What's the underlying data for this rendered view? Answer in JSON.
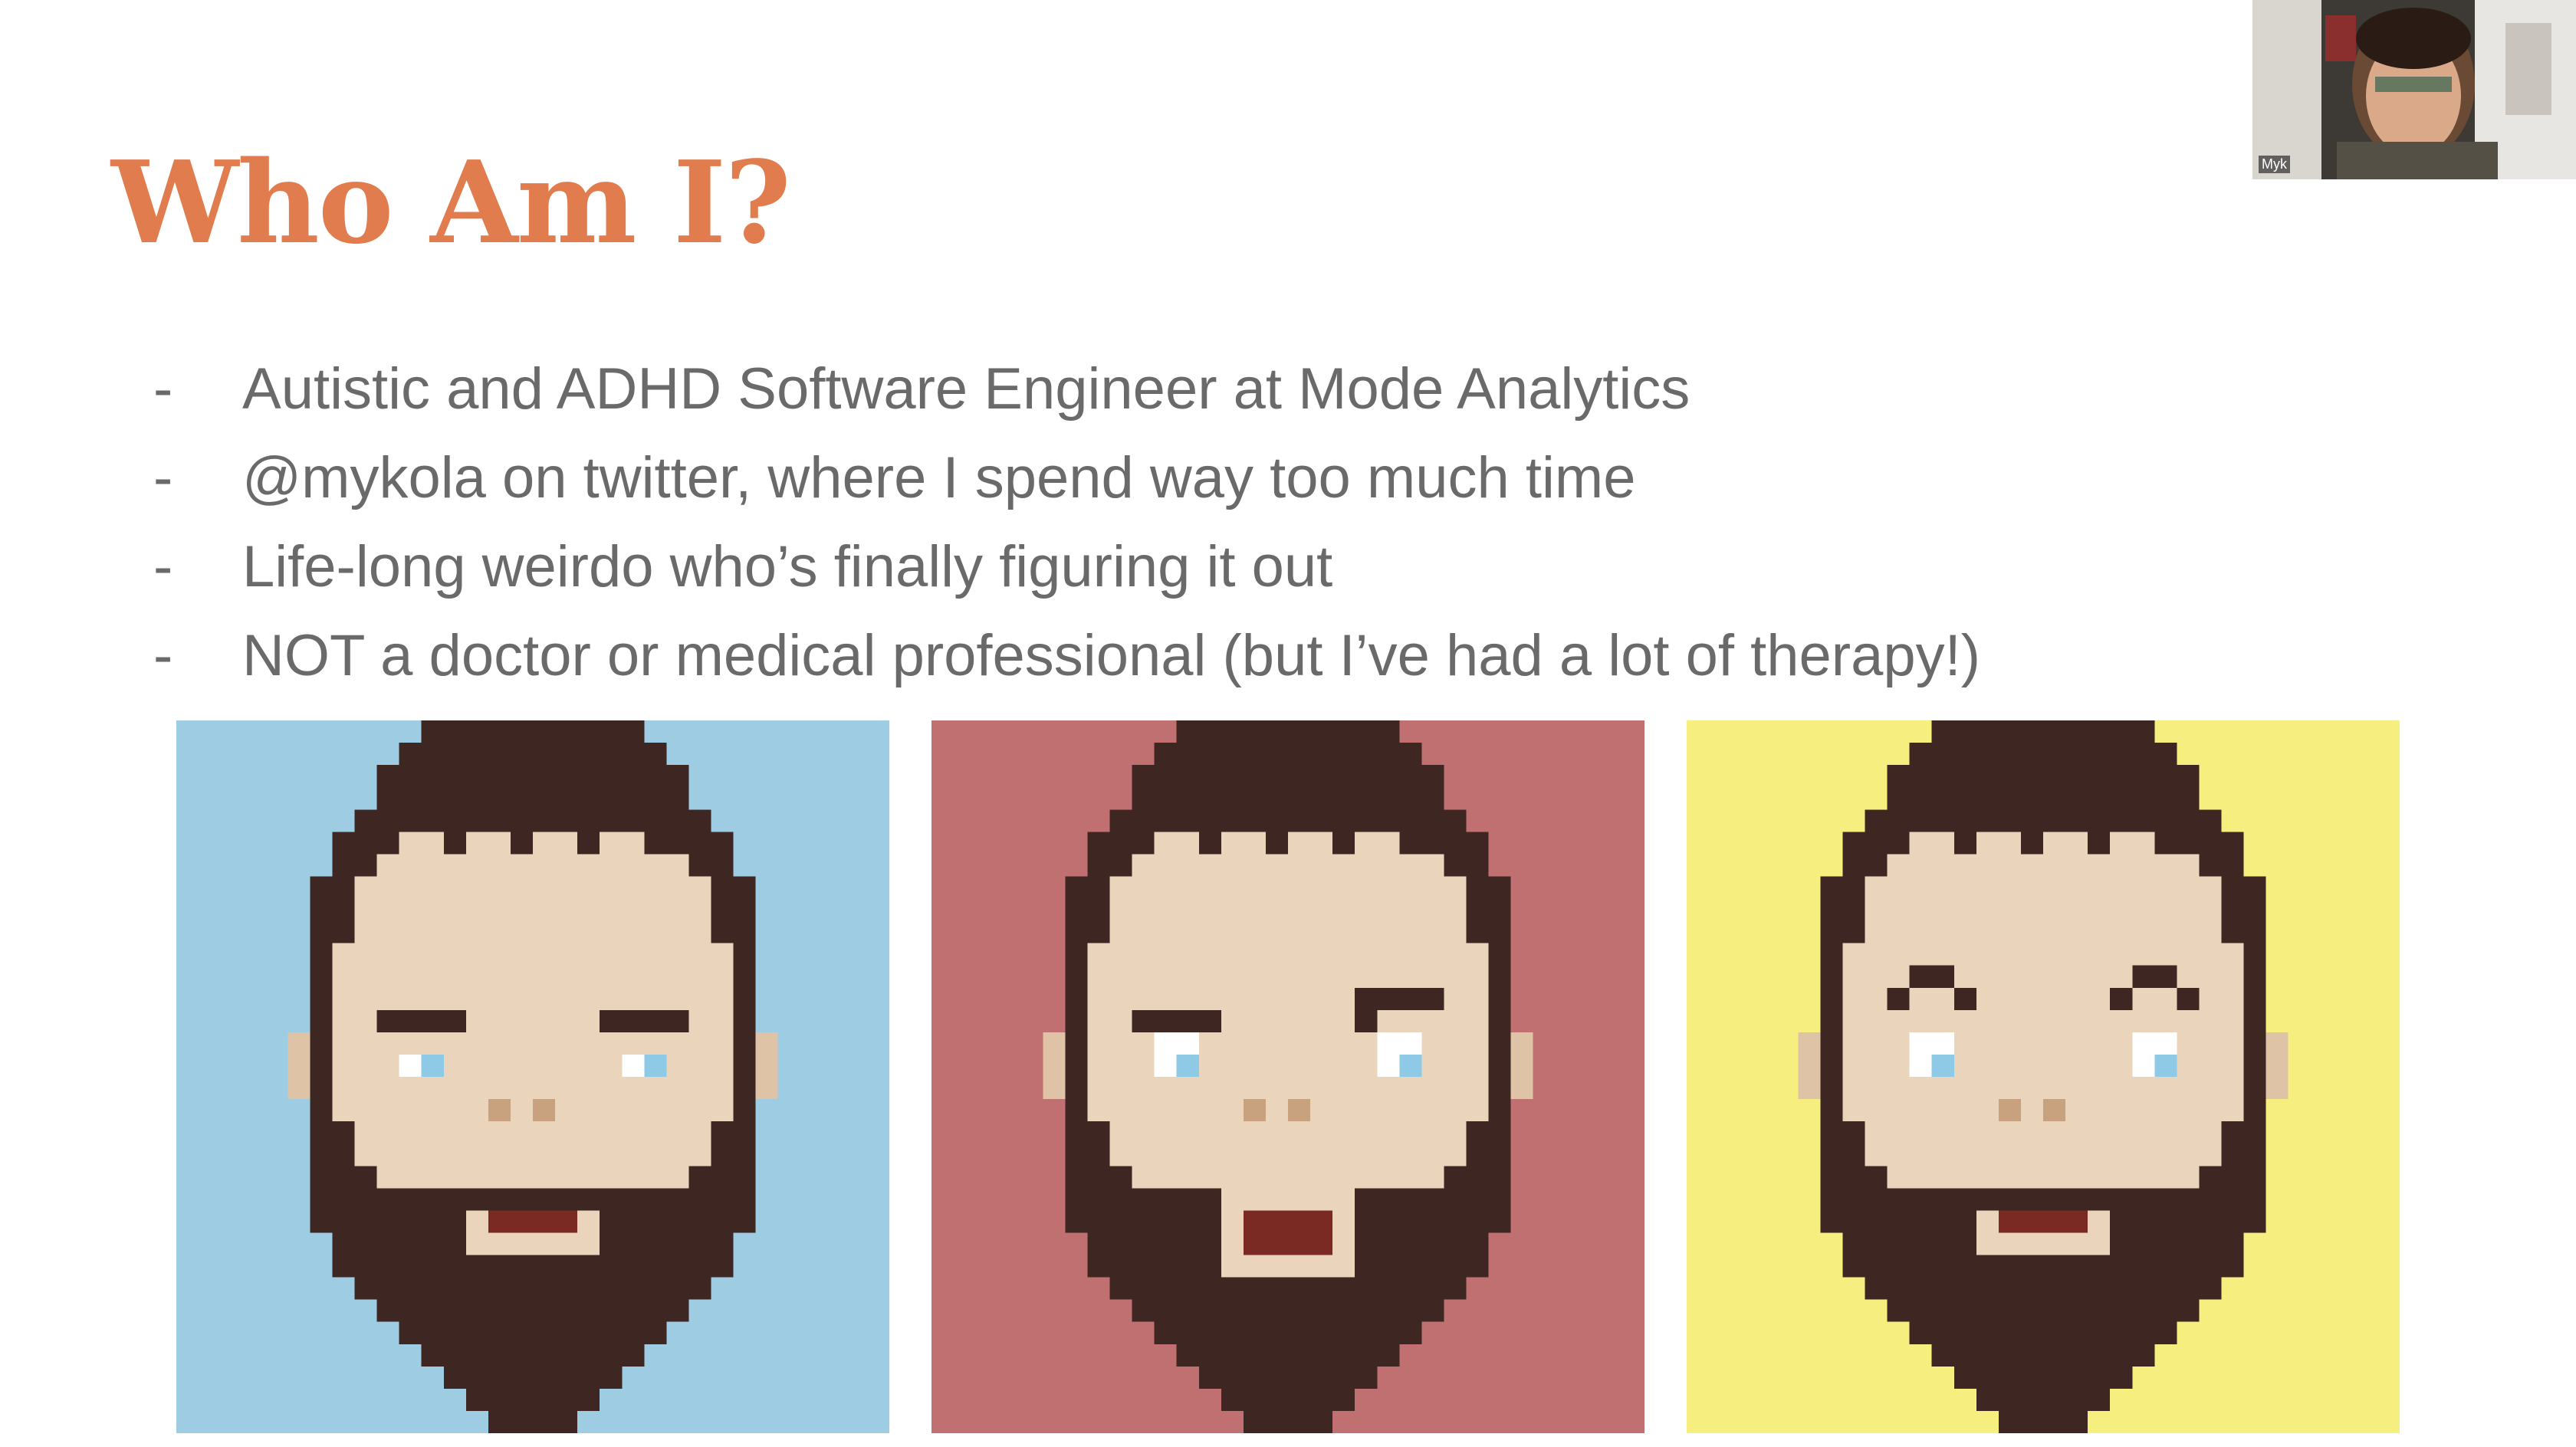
{
  "slide": {
    "title": "Who Am I?",
    "bullets": [
      {
        "marker": "-",
        "text": "Autistic and ADHD Software Engineer at Mode Analytics"
      },
      {
        "marker": "-",
        "text": "@mykola on twitter, where I spend way too much time"
      },
      {
        "marker": "-",
        "text": "Life-long weirdo who’s finally figuring it out"
      },
      {
        "marker": "-",
        "text": "NOT a doctor or medical professional (but I’ve had a lot of therapy!)"
      }
    ],
    "avatars": [
      {
        "background": "#9ecde3",
        "expression": "neutral-eyebrows"
      },
      {
        "background": "#c07070",
        "expression": "surprised-open-mouth"
      },
      {
        "background": "#f6ef80",
        "expression": "raised-eyebrows"
      }
    ]
  },
  "webcam": {
    "participant_name": "Myk"
  },
  "colors": {
    "title": "#e07c4d",
    "text": "#6a6a6a",
    "beard": "#3e2723",
    "skin": "#ead5bc",
    "eye_blue": "#8ecae6"
  }
}
